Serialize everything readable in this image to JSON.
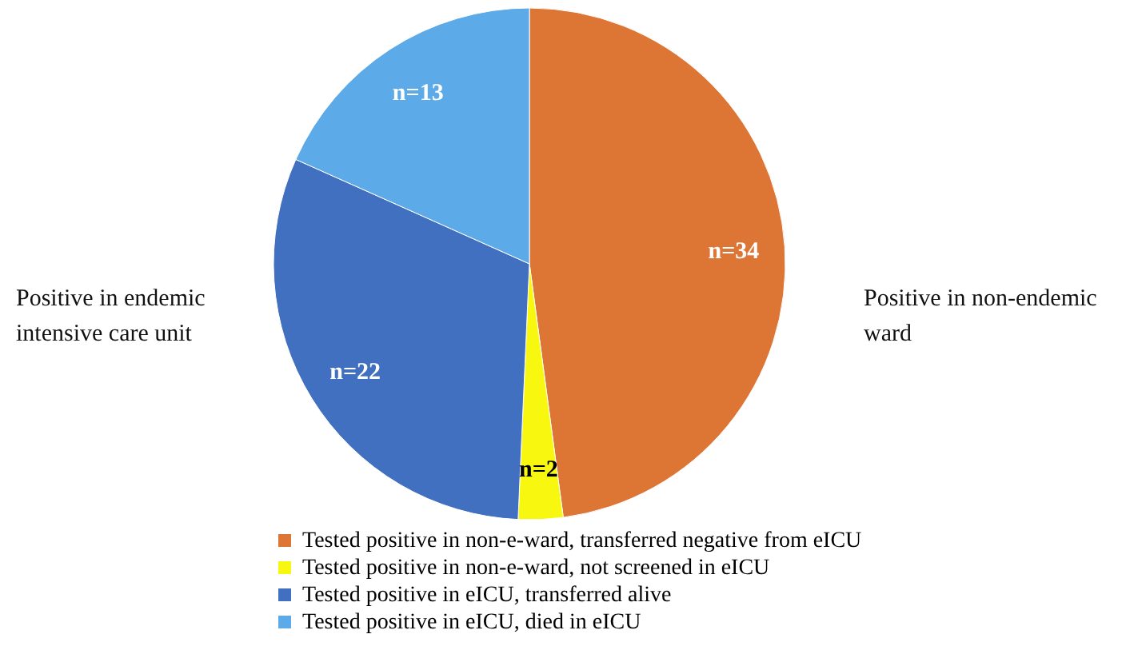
{
  "chart_data": {
    "type": "pie",
    "categories": [
      "Tested positive in non-e-ward, transferred negative from eICU",
      "Tested positive in non-e-ward, not screened in eICU",
      "Tested positive in eICU, transferred alive",
      "Tested positive in eICU, died in eICU"
    ],
    "values": [
      34,
      2,
      22,
      13
    ],
    "value_labels": [
      "n=34",
      "n=2",
      "n=22",
      "n=13"
    ],
    "colors": [
      "#dd7535",
      "#f7f70f",
      "#4270c0",
      "#5caae8"
    ],
    "legend": "bottom",
    "annotations": [
      "Positive in endemic intensive care unit",
      "Positive in non-endemic ward"
    ]
  }
}
